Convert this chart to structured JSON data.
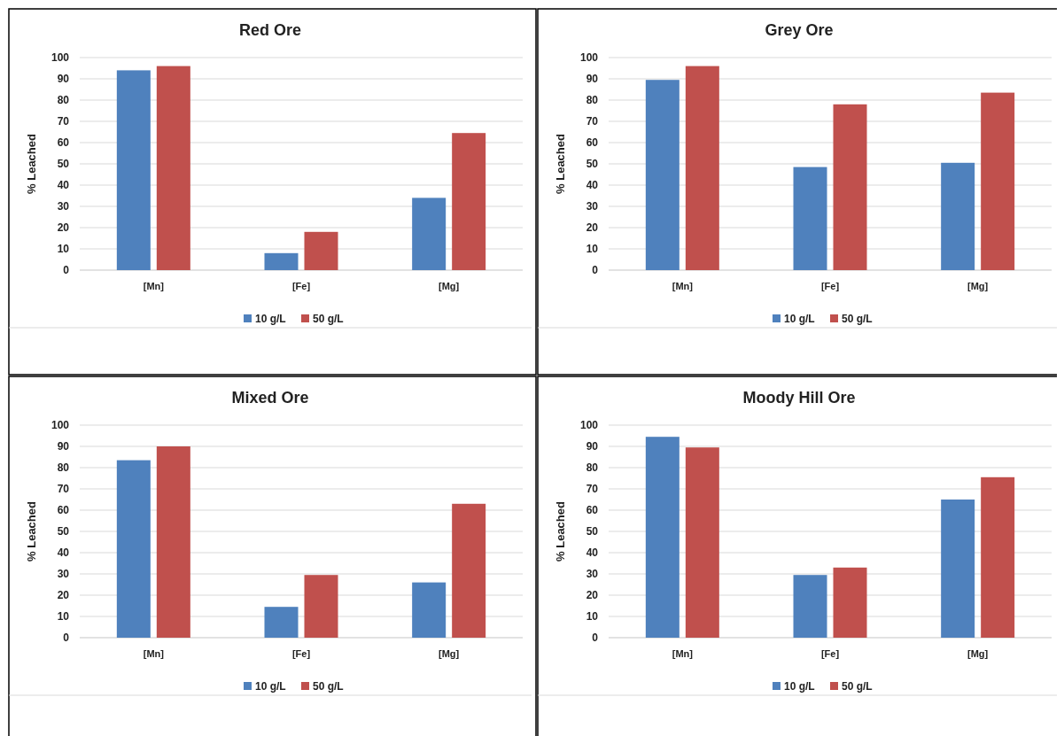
{
  "chart_data": [
    {
      "type": "bar",
      "title": "Red Ore",
      "ylabel": "% Leached",
      "categories": [
        "[Mn]",
        "[Fe]",
        "[Mg]"
      ],
      "series": [
        {
          "name": "10 g/L",
          "color": "#4f81bd",
          "values": [
            94,
            8,
            34
          ]
        },
        {
          "name": "50 g/L",
          "color": "#c0504d",
          "values": [
            96,
            18,
            64.5
          ]
        }
      ],
      "ylim": [
        0,
        100
      ],
      "yticks": [
        0,
        10,
        20,
        30,
        40,
        50,
        60,
        70,
        80,
        90,
        100
      ],
      "grid": "y",
      "legend": "bottom"
    },
    {
      "type": "bar",
      "title": "Grey Ore",
      "ylabel": "% Leached",
      "categories": [
        "[Mn]",
        "[Fe]",
        "[Mg]"
      ],
      "series": [
        {
          "name": "10 g/L",
          "color": "#4f81bd",
          "values": [
            89.5,
            48.5,
            50.5
          ]
        },
        {
          "name": "50 g/L",
          "color": "#c0504d",
          "values": [
            96,
            78,
            83.5
          ]
        }
      ],
      "ylim": [
        0,
        100
      ],
      "yticks": [
        0,
        10,
        20,
        30,
        40,
        50,
        60,
        70,
        80,
        90,
        100
      ],
      "grid": "y",
      "legend": "bottom"
    },
    {
      "type": "bar",
      "title": "Mixed Ore",
      "ylabel": "% Leached",
      "categories": [
        "[Mn]",
        "[Fe]",
        "[Mg]"
      ],
      "series": [
        {
          "name": "10 g/L",
          "color": "#4f81bd",
          "values": [
            83.5,
            14.5,
            26
          ]
        },
        {
          "name": "50 g/L",
          "color": "#c0504d",
          "values": [
            90,
            29.5,
            63
          ]
        }
      ],
      "ylim": [
        0,
        100
      ],
      "yticks": [
        0,
        10,
        20,
        30,
        40,
        50,
        60,
        70,
        80,
        90,
        100
      ],
      "grid": "y",
      "legend": "bottom"
    },
    {
      "type": "bar",
      "title": "Moody Hill Ore",
      "ylabel": "% Leached",
      "categories": [
        "[Mn]",
        "[Fe]",
        "[Mg]"
      ],
      "series": [
        {
          "name": "10 g/L",
          "color": "#4f81bd",
          "values": [
            94.5,
            29.5,
            65
          ]
        },
        {
          "name": "50 g/L",
          "color": "#c0504d",
          "values": [
            89.5,
            33,
            75.5
          ]
        }
      ],
      "ylim": [
        0,
        100
      ],
      "yticks": [
        0,
        10,
        20,
        30,
        40,
        50,
        60,
        70,
        80,
        90,
        100
      ],
      "grid": "y",
      "legend": "bottom"
    }
  ]
}
